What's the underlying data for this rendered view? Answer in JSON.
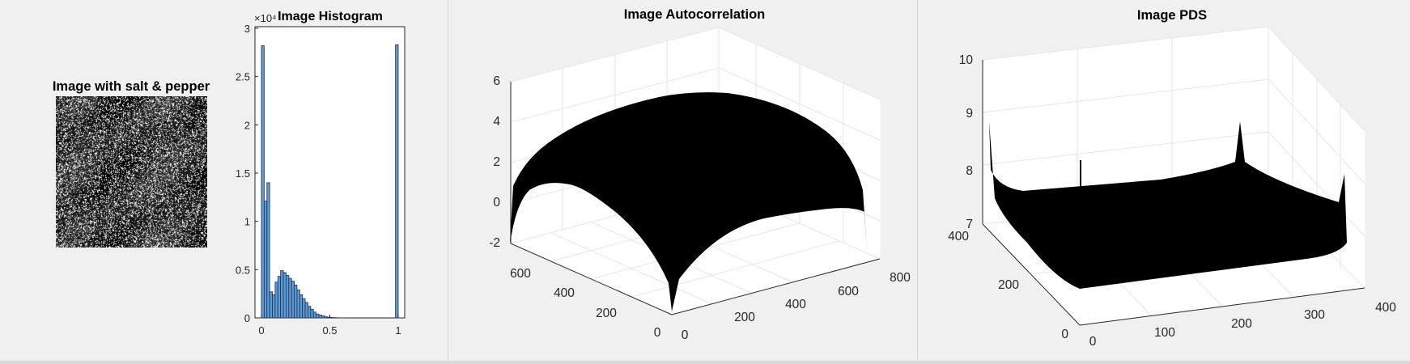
{
  "figures": {
    "noisy_image": {
      "title": "Image with salt & pepper"
    },
    "histogram": {
      "title": "Image Histogram",
      "exponent_label": "×10⁴",
      "y_ticks": [
        "0",
        "0.5",
        "1",
        "1.5",
        "2",
        "2.5",
        "3"
      ],
      "x_ticks": [
        "0",
        "0.5",
        "1"
      ]
    },
    "autocorrelation": {
      "title": "Image Autocorrelation",
      "z_ticks": [
        "-2",
        "0",
        "2",
        "4",
        "6"
      ],
      "y_ticks": [
        "0",
        "200",
        "400",
        "600"
      ],
      "x_ticks": [
        "0",
        "200",
        "400",
        "600",
        "800"
      ]
    },
    "pds": {
      "title": "Image PDS",
      "z_ticks": [
        "7",
        "8",
        "9",
        "10"
      ],
      "y_ticks": [
        "0",
        "200",
        "400"
      ],
      "x_ticks": [
        "0",
        "100",
        "200",
        "300",
        "400"
      ]
    }
  },
  "colors": {
    "bar_fill": "#5b9bd5",
    "bar_edge": "#1f2f4f",
    "surface": "#000000",
    "axes_bg": "#ffffff"
  },
  "chart_data": [
    {
      "type": "bar",
      "title": "Image Histogram",
      "xlim": [
        0,
        1
      ],
      "ylim": [
        0,
        30000
      ],
      "bin_width": 0.02,
      "x": [
        0.01,
        0.03,
        0.05,
        0.07,
        0.09,
        0.11,
        0.13,
        0.15,
        0.17,
        0.19,
        0.21,
        0.23,
        0.25,
        0.27,
        0.29,
        0.31,
        0.33,
        0.35,
        0.37,
        0.39,
        0.41,
        0.43,
        0.45,
        0.47,
        0.49,
        0.51,
        0.53,
        0.55,
        0.57,
        0.59,
        0.61,
        0.63,
        0.65,
        0.67,
        0.69,
        0.71,
        0.73,
        0.75,
        0.77,
        0.79,
        0.81,
        0.83,
        0.85,
        0.87,
        0.89,
        0.91,
        0.93,
        0.95,
        0.97,
        0.99
      ],
      "values": [
        28200,
        12100,
        14000,
        2700,
        2400,
        3700,
        4300,
        4900,
        4700,
        4400,
        4100,
        3800,
        3400,
        2900,
        2400,
        2000,
        1600,
        1200,
        900,
        600,
        400,
        300,
        200,
        120,
        80,
        50,
        30,
        20,
        10,
        5,
        0,
        0,
        0,
        0,
        0,
        0,
        0,
        0,
        0,
        0,
        0,
        0,
        0,
        0,
        0,
        0,
        0,
        0,
        0,
        28300
      ]
    }
  ]
}
